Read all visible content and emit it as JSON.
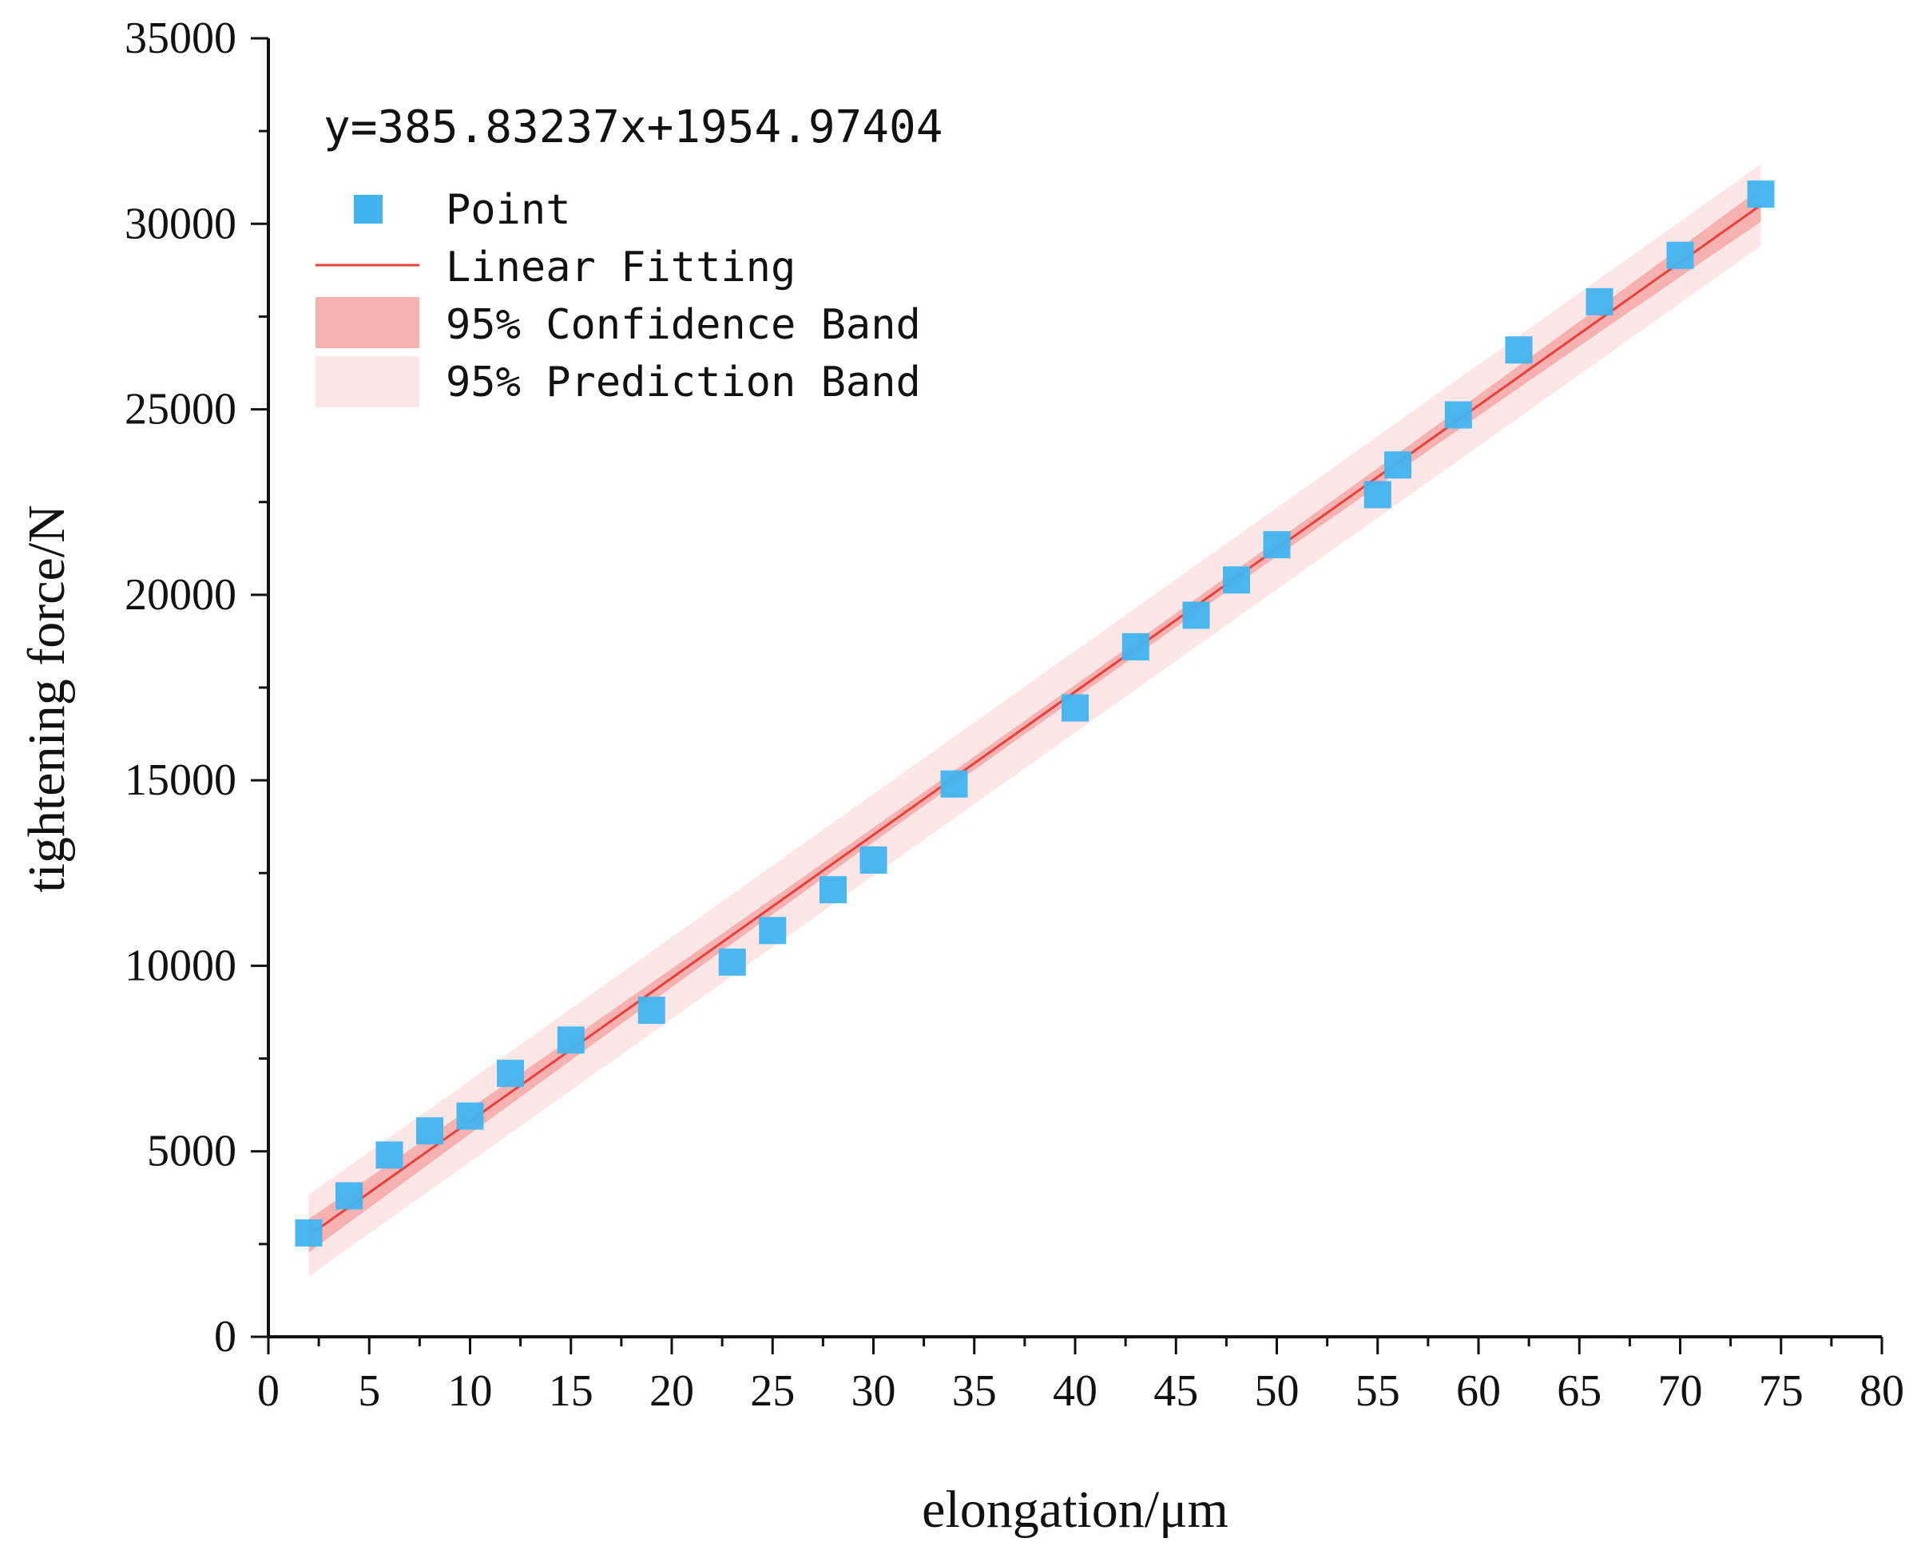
{
  "chart_data": {
    "type": "scatter",
    "title": "",
    "xlabel": "elongation/μm",
    "ylabel": "tightening force/N",
    "xlim": [
      0,
      80
    ],
    "ylim": [
      0,
      35000
    ],
    "x_ticks": [
      0,
      5,
      10,
      15,
      20,
      25,
      30,
      35,
      40,
      45,
      50,
      55,
      60,
      65,
      70,
      75,
      80
    ],
    "x_tick_labels": [
      "0",
      "5",
      "10",
      "15",
      "20",
      "25",
      "30",
      "35",
      "40",
      "45",
      "50",
      "55",
      "60",
      "65",
      "70",
      "75",
      "80"
    ],
    "y_ticks": [
      0,
      5000,
      10000,
      15000,
      20000,
      25000,
      30000,
      35000
    ],
    "y_tick_labels": [
      "0",
      "5000",
      "10000",
      "15000",
      "20000",
      "25000",
      "30000",
      "35000"
    ],
    "grid": false,
    "legend_position": "top-left",
    "equation": "y=385.83237x+1954.97404",
    "fit": {
      "slope": 385.83237,
      "intercept": 1954.97404,
      "x_range": [
        2,
        74
      ]
    },
    "confidence_half_width": [
      450,
      180,
      450
    ],
    "prediction_half_width": 1100,
    "series": [
      {
        "name": "Point",
        "kind": "scatter",
        "color": "#41b4f0",
        "x": [
          2,
          4,
          6,
          8,
          10,
          12,
          15,
          19,
          23,
          25,
          28,
          30,
          34,
          40,
          43,
          46,
          48,
          50,
          55,
          56,
          59,
          62,
          66,
          70,
          74
        ],
        "y": [
          2800,
          3800,
          4900,
          5550,
          5950,
          7100,
          8000,
          8800,
          10100,
          10950,
          12050,
          12850,
          14900,
          16950,
          18600,
          19450,
          20400,
          21350,
          22700,
          23500,
          24850,
          26600,
          27900,
          29150,
          30800
        ]
      },
      {
        "name": "Linear Fitting",
        "kind": "line",
        "color": "#e8403a"
      },
      {
        "name": "95% Confidence Band",
        "kind": "band",
        "color": "#f7b1b1"
      },
      {
        "name": "95% Prediction Band",
        "kind": "band",
        "color": "#fde6e6"
      }
    ]
  }
}
